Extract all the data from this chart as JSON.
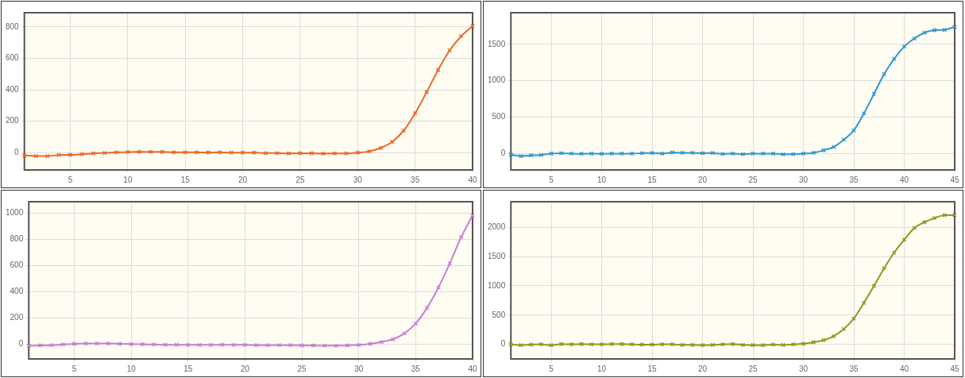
{
  "chart_data": [
    {
      "type": "line",
      "x": [
        1,
        2,
        3,
        4,
        5,
        6,
        7,
        8,
        9,
        10,
        11,
        12,
        13,
        14,
        15,
        16,
        17,
        18,
        19,
        20,
        21,
        22,
        23,
        24,
        25,
        26,
        27,
        28,
        29,
        30,
        31,
        32,
        33,
        34,
        35,
        36,
        37,
        38,
        39,
        40
      ],
      "series": [
        {
          "color": "#e8692a",
          "values": [
            -18,
            -22,
            -22,
            -15,
            -14,
            -10,
            -5,
            -2,
            2,
            4,
            5,
            5,
            5,
            2,
            2,
            2,
            1,
            2,
            0,
            0,
            0,
            -3,
            -3,
            -5,
            -4,
            -4,
            -6,
            -5,
            -5,
            0,
            8,
            30,
            68,
            140,
            250,
            385,
            525,
            650,
            740,
            805
          ]
        }
      ],
      "xlim": [
        1,
        40
      ],
      "xticks": [
        5,
        10,
        15,
        20,
        25,
        30,
        35,
        40
      ],
      "ylim": [
        -110,
        890
      ],
      "yticks": [
        0,
        200,
        400,
        600,
        800
      ],
      "grid": true,
      "marker": "cross",
      "legend": false
    },
    {
      "type": "line",
      "x": [
        1,
        2,
        3,
        4,
        5,
        6,
        7,
        8,
        9,
        10,
        11,
        12,
        13,
        14,
        15,
        16,
        17,
        18,
        19,
        20,
        21,
        22,
        23,
        24,
        25,
        26,
        27,
        28,
        29,
        30,
        31,
        32,
        33,
        34,
        35,
        36,
        37,
        38,
        39,
        40,
        41,
        42,
        43,
        44,
        45
      ],
      "series": [
        {
          "color": "#2f97cf",
          "values": [
            -15,
            -35,
            -25,
            -20,
            0,
            5,
            0,
            -3,
            0,
            -3,
            0,
            0,
            0,
            5,
            8,
            0,
            15,
            10,
            10,
            5,
            8,
            -5,
            0,
            -8,
            0,
            0,
            0,
            -10,
            -8,
            0,
            10,
            45,
            90,
            190,
            320,
            550,
            820,
            1090,
            1300,
            1470,
            1580,
            1660,
            1695,
            1700,
            1740
          ]
        }
      ],
      "xlim": [
        1,
        45
      ],
      "xticks": [
        5,
        10,
        15,
        20,
        25,
        30,
        35,
        40,
        45
      ],
      "ylim": [
        -225,
        1935
      ],
      "yticks": [
        0,
        500,
        1000,
        1500
      ],
      "grid": true,
      "marker": "cross",
      "legend": false
    },
    {
      "type": "line",
      "x": [
        1,
        2,
        3,
        4,
        5,
        6,
        7,
        8,
        9,
        10,
        11,
        12,
        13,
        14,
        15,
        16,
        17,
        18,
        19,
        20,
        21,
        22,
        23,
        24,
        25,
        26,
        27,
        28,
        29,
        30,
        31,
        32,
        33,
        34,
        35,
        36,
        37,
        38,
        39,
        40
      ],
      "series": [
        {
          "color": "#c67fd4",
          "values": [
            -15,
            -12,
            -10,
            -5,
            0,
            3,
            3,
            3,
            0,
            -2,
            -3,
            -5,
            -7,
            -7,
            -8,
            -8,
            -8,
            -7,
            -8,
            -8,
            -10,
            -10,
            -10,
            -10,
            -12,
            -12,
            -14,
            -14,
            -12,
            -8,
            0,
            15,
            35,
            80,
            155,
            275,
            430,
            615,
            815,
            980
          ]
        }
      ],
      "xlim": [
        1,
        40
      ],
      "xticks": [
        5,
        10,
        15,
        20,
        25,
        30,
        35,
        40
      ],
      "ylim": [
        -115,
        1085
      ],
      "yticks": [
        0,
        200,
        400,
        600,
        800,
        1000
      ],
      "grid": true,
      "marker": "cross",
      "legend": false
    },
    {
      "type": "line",
      "x": [
        1,
        2,
        3,
        4,
        5,
        6,
        7,
        8,
        9,
        10,
        11,
        12,
        13,
        14,
        15,
        16,
        17,
        18,
        19,
        20,
        21,
        22,
        23,
        24,
        25,
        26,
        27,
        28,
        29,
        30,
        31,
        32,
        33,
        34,
        35,
        36,
        37,
        38,
        39,
        40,
        41,
        42,
        43,
        44,
        45
      ],
      "series": [
        {
          "color": "#8a9a1e",
          "values": [
            0,
            -15,
            -5,
            0,
            -15,
            5,
            0,
            5,
            0,
            0,
            5,
            5,
            0,
            -5,
            -5,
            0,
            0,
            -10,
            -10,
            -15,
            -10,
            0,
            5,
            -10,
            -15,
            -15,
            -5,
            -10,
            0,
            10,
            35,
            70,
            140,
            260,
            440,
            710,
            1000,
            1300,
            1570,
            1790,
            1990,
            2090,
            2160,
            2210,
            2210
          ]
        }
      ],
      "xlim": [
        1,
        45
      ],
      "xticks": [
        5,
        10,
        15,
        20,
        25,
        30,
        35,
        40,
        45
      ],
      "ylim": [
        -250,
        2440
      ],
      "yticks": [
        0,
        500,
        1000,
        1500,
        2000
      ],
      "grid": true,
      "marker": "cross",
      "legend": false
    }
  ]
}
